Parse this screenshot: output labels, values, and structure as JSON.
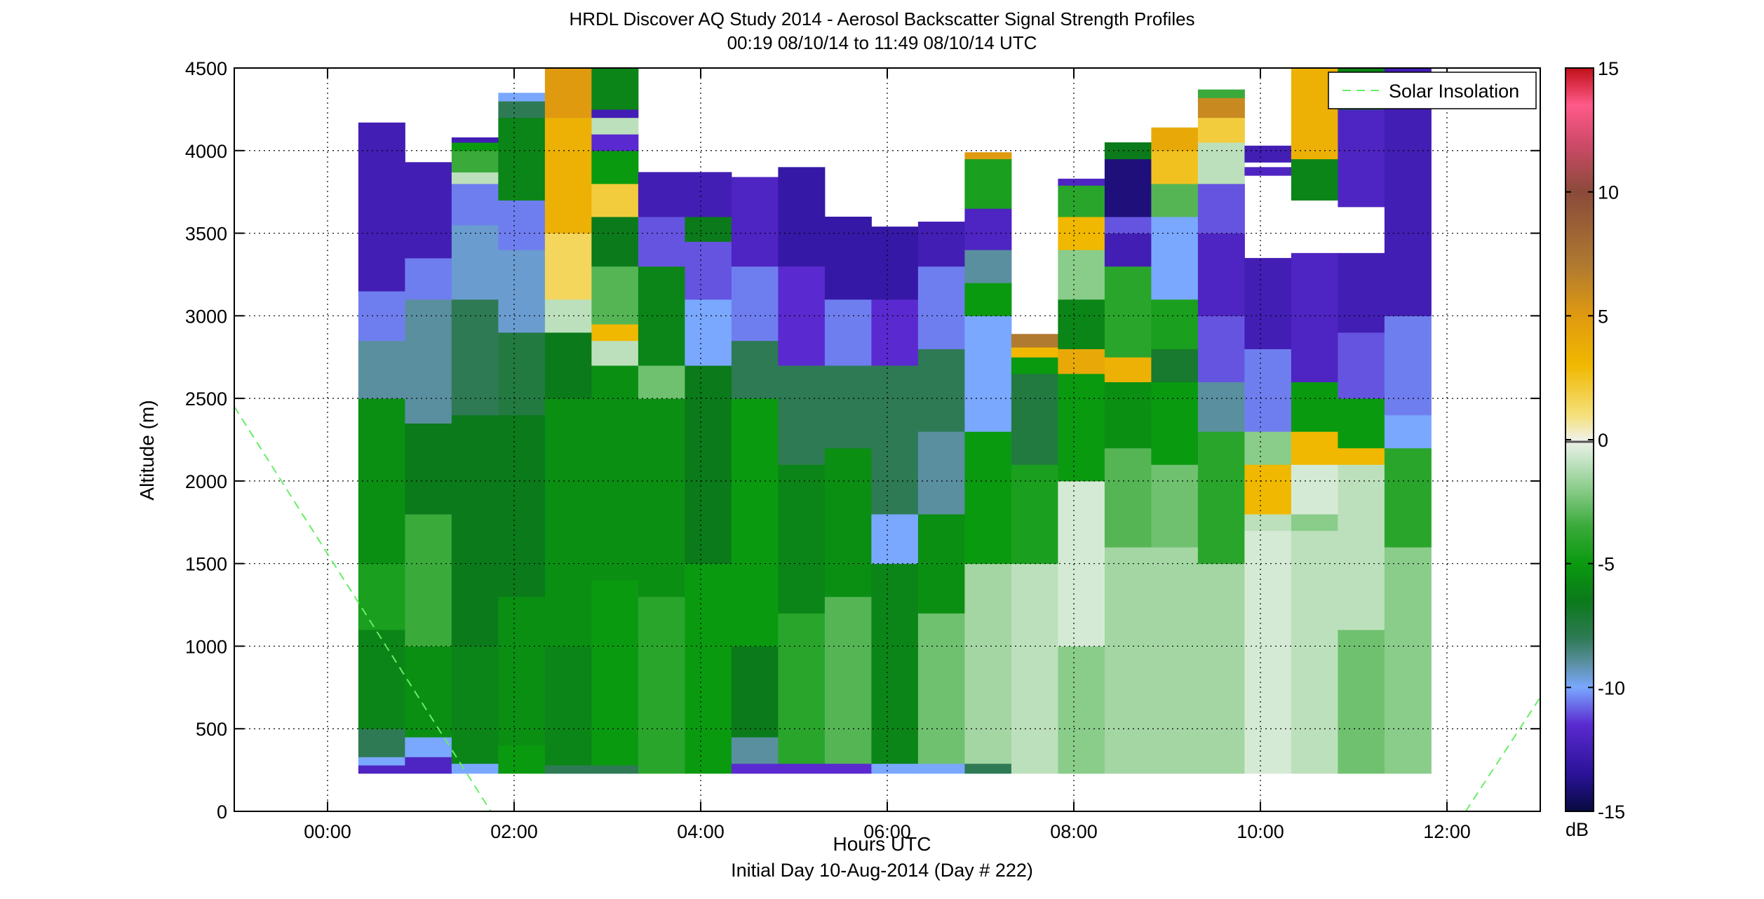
{
  "chart_data": {
    "type": "heatmap",
    "title": "HRDL Discover AQ Study 2014 - Aerosol Backscatter Signal Strength Profiles",
    "subtitle": "00:19 08/10/14 to 11:49 08/10/14  UTC",
    "xlabel": "Hours UTC",
    "ylabel": "Altitude (m)",
    "footnote": "Initial Day 10-Aug-2014 (Day # 222)",
    "xlim_hours": [
      -1.0,
      13.0
    ],
    "ylim": [
      0,
      4500
    ],
    "x_ticks": [
      {
        "value": 0,
        "label": "00:00"
      },
      {
        "value": 2,
        "label": "02:00"
      },
      {
        "value": 4,
        "label": "04:00"
      },
      {
        "value": 6,
        "label": "06:00"
      },
      {
        "value": 8,
        "label": "08:00"
      },
      {
        "value": 10,
        "label": "10:00"
      },
      {
        "value": 12,
        "label": "12:00"
      }
    ],
    "y_ticks": [
      0,
      500,
      1000,
      1500,
      2000,
      2500,
      3000,
      3500,
      4000,
      4500
    ],
    "grid": true,
    "legend": {
      "placement": "top-right",
      "entries": [
        "Solar Insolation"
      ]
    },
    "colorbar": {
      "unit": "dB",
      "range": [
        -15,
        15
      ],
      "ticks": [
        -15,
        -10,
        -5,
        0,
        5,
        10,
        15
      ],
      "stops": [
        {
          "v": -15,
          "c": "#080a40"
        },
        {
          "v": -13.5,
          "c": "#2a1298"
        },
        {
          "v": -11.5,
          "c": "#5a2ad0"
        },
        {
          "v": -10,
          "c": "#7aa8ff"
        },
        {
          "v": -9,
          "c": "#5a8fa0"
        },
        {
          "v": -8,
          "c": "#2e7a55"
        },
        {
          "v": -6.5,
          "c": "#0b7a1a"
        },
        {
          "v": -5,
          "c": "#0a9a10"
        },
        {
          "v": -3.5,
          "c": "#3aaa3a"
        },
        {
          "v": -2,
          "c": "#8acc8a"
        },
        {
          "v": -0.5,
          "c": "#d5ead5"
        },
        {
          "v": 0,
          "c": "#f0f0e6"
        },
        {
          "v": 1,
          "c": "#f5e07a"
        },
        {
          "v": 3,
          "c": "#f0b800"
        },
        {
          "v": 5,
          "c": "#e09a10"
        },
        {
          "v": 7,
          "c": "#b07a30"
        },
        {
          "v": 10,
          "c": "#8a4a3a"
        },
        {
          "v": 12,
          "c": "#d04a6a"
        },
        {
          "v": 13.5,
          "c": "#ff5a8a"
        },
        {
          "v": 15,
          "c": "#c01018"
        }
      ]
    },
    "solar_insolation_line": {
      "name": "Solar Insolation",
      "color": "#66ee66",
      "segments": [
        [
          [
            -1.0,
            2450
          ],
          [
            1.75,
            0
          ]
        ],
        [
          [
            12.2,
            0
          ],
          [
            13.0,
            690
          ]
        ]
      ]
    },
    "profiles": [
      {
        "t0": 0.33,
        "t1": 0.83,
        "top": 4170,
        "layers": [
          [
            230,
            280,
            -12
          ],
          [
            280,
            330,
            -10
          ],
          [
            330,
            500,
            -8
          ],
          [
            500,
            1100,
            -6
          ],
          [
            1100,
            1500,
            -4.5
          ],
          [
            1500,
            2500,
            -5.5
          ],
          [
            2500,
            2850,
            -9
          ],
          [
            2850,
            3150,
            -10.5
          ],
          [
            3150,
            4170,
            -12.5
          ]
        ]
      },
      {
        "t0": 0.83,
        "t1": 1.33,
        "top": 3930,
        "layers": [
          [
            230,
            330,
            -12
          ],
          [
            330,
            450,
            -10
          ],
          [
            450,
            1000,
            -5.5
          ],
          [
            1000,
            1800,
            -3.5
          ],
          [
            1800,
            2350,
            -6.5
          ],
          [
            2350,
            3100,
            -9
          ],
          [
            3100,
            3350,
            -10.5
          ],
          [
            3350,
            3930,
            -12.5
          ]
        ]
      },
      {
        "t0": 1.33,
        "t1": 1.83,
        "top": 4080,
        "layers": [
          [
            230,
            290,
            -10
          ],
          [
            290,
            1000,
            -6
          ],
          [
            1000,
            2400,
            -6.5
          ],
          [
            2400,
            3100,
            -8
          ],
          [
            3100,
            3550,
            -9.5
          ],
          [
            3550,
            3800,
            -10.5
          ],
          [
            3800,
            3870,
            -1
          ],
          [
            3870,
            4000,
            -3.5
          ],
          [
            4000,
            4050,
            -5
          ],
          [
            4050,
            4080,
            -12.5
          ]
        ]
      },
      {
        "t0": 1.83,
        "t1": 2.33,
        "top": 4350,
        "layers": [
          [
            230,
            400,
            -5
          ],
          [
            400,
            1300,
            -5.5
          ],
          [
            1300,
            2400,
            -6.5
          ],
          [
            2400,
            2900,
            -7.5
          ],
          [
            2900,
            3400,
            -9.5
          ],
          [
            3400,
            3700,
            -10.5
          ],
          [
            3700,
            4200,
            -6
          ],
          [
            4200,
            4300,
            -8
          ],
          [
            4300,
            4350,
            -10
          ]
        ]
      },
      {
        "t0": 2.33,
        "t1": 2.83,
        "top": 4500,
        "layers": [
          [
            230,
            280,
            -8
          ],
          [
            280,
            1000,
            -6
          ],
          [
            1000,
            2500,
            -5.5
          ],
          [
            2500,
            2900,
            -6.5
          ],
          [
            2900,
            3100,
            -1
          ],
          [
            3100,
            3500,
            1.5
          ],
          [
            3500,
            4200,
            3.5
          ],
          [
            4200,
            4500,
            5
          ]
        ]
      },
      {
        "t0": 2.83,
        "t1": 3.33,
        "top": 4500,
        "layers": [
          [
            230,
            280,
            -8
          ],
          [
            280,
            1400,
            -5
          ],
          [
            1400,
            2700,
            -5.5
          ],
          [
            2700,
            2850,
            -1
          ],
          [
            2850,
            2950,
            3
          ],
          [
            2950,
            3300,
            -3
          ],
          [
            3300,
            3600,
            -6.5
          ],
          [
            3600,
            3800,
            2
          ],
          [
            3800,
            4000,
            -5
          ],
          [
            4000,
            4100,
            -11.5
          ],
          [
            4100,
            4200,
            -1
          ],
          [
            4200,
            4250,
            -12.5
          ],
          [
            4250,
            4500,
            -6
          ]
        ]
      },
      {
        "t0": 3.33,
        "t1": 3.83,
        "top": 3870,
        "layers": [
          [
            230,
            1300,
            -4
          ],
          [
            1300,
            2500,
            -5.5
          ],
          [
            2500,
            2700,
            -2.5
          ],
          [
            2700,
            3300,
            -6
          ],
          [
            3300,
            3600,
            -11
          ],
          [
            3600,
            3870,
            -12.5
          ]
        ]
      },
      {
        "t0": 3.83,
        "t1": 4.33,
        "top": 3870,
        "layers": [
          [
            230,
            1500,
            -5
          ],
          [
            1500,
            2700,
            -6.5
          ],
          [
            2700,
            3100,
            -10
          ],
          [
            3100,
            3450,
            -11
          ],
          [
            3450,
            3600,
            -6.5
          ],
          [
            3600,
            3870,
            -12.5
          ]
        ]
      },
      {
        "t0": 4.33,
        "t1": 4.83,
        "top": 3840,
        "layers": [
          [
            230,
            290,
            -11.5
          ],
          [
            290,
            450,
            -9
          ],
          [
            450,
            1000,
            -6.5
          ],
          [
            1000,
            2500,
            -5
          ],
          [
            2500,
            2850,
            -8
          ],
          [
            2850,
            3300,
            -10.5
          ],
          [
            3300,
            3840,
            -12
          ]
        ]
      },
      {
        "t0": 4.83,
        "t1": 5.33,
        "top": 3900,
        "layers": [
          [
            230,
            290,
            -11.5
          ],
          [
            290,
            1200,
            -4
          ],
          [
            1200,
            2100,
            -6
          ],
          [
            2100,
            2700,
            -8
          ],
          [
            2700,
            3300,
            -11.5
          ],
          [
            3300,
            3900,
            -13
          ]
        ]
      },
      {
        "t0": 5.33,
        "t1": 5.83,
        "top": 3600,
        "layers": [
          [
            230,
            290,
            -11.5
          ],
          [
            290,
            1300,
            -3
          ],
          [
            1300,
            2200,
            -5.5
          ],
          [
            2200,
            2700,
            -8
          ],
          [
            2700,
            3100,
            -10.5
          ],
          [
            3100,
            3600,
            -13
          ]
        ]
      },
      {
        "t0": 5.83,
        "t1": 6.33,
        "top": 3540,
        "layers": [
          [
            230,
            290,
            -10
          ],
          [
            290,
            1500,
            -6
          ],
          [
            1500,
            1800,
            -10
          ],
          [
            1800,
            2700,
            -8
          ],
          [
            2700,
            3100,
            -11.5
          ],
          [
            3100,
            3540,
            -13
          ]
        ]
      },
      {
        "t0": 6.33,
        "t1": 6.83,
        "top": 3570,
        "layers": [
          [
            230,
            290,
            -10
          ],
          [
            290,
            1200,
            -2.5
          ],
          [
            1200,
            1800,
            -5.5
          ],
          [
            1800,
            2300,
            -9
          ],
          [
            2300,
            2800,
            -8
          ],
          [
            2800,
            3300,
            -10.5
          ],
          [
            3300,
            3570,
            -12.5
          ]
        ]
      },
      {
        "t0": 6.83,
        "t1": 7.33,
        "top": 3990,
        "layers": [
          [
            230,
            290,
            -8
          ],
          [
            290,
            1500,
            -1.5
          ],
          [
            1500,
            2300,
            -5
          ],
          [
            2300,
            3000,
            -10
          ],
          [
            3000,
            3200,
            -5
          ],
          [
            3200,
            3400,
            -9
          ],
          [
            3400,
            3650,
            -12
          ],
          [
            3650,
            3950,
            -4.5
          ],
          [
            3950,
            3990,
            5
          ]
        ]
      },
      {
        "t0": 7.33,
        "t1": 7.83,
        "top": 2890,
        "layers": [
          [
            230,
            1500,
            -1
          ],
          [
            1500,
            2100,
            -4.5
          ],
          [
            2100,
            2650,
            -7.5
          ],
          [
            2650,
            2750,
            -5
          ],
          [
            2750,
            2810,
            3
          ],
          [
            2810,
            2890,
            7
          ]
        ]
      },
      {
        "t0": 7.83,
        "t1": 8.33,
        "top": 3830,
        "layers": [
          [
            230,
            1000,
            -2
          ],
          [
            1000,
            2000,
            -0.5
          ],
          [
            2000,
            2650,
            -5
          ],
          [
            2650,
            2800,
            4
          ],
          [
            2800,
            3100,
            -6
          ],
          [
            3100,
            3400,
            -2
          ],
          [
            3400,
            3600,
            3
          ],
          [
            3600,
            3790,
            -4
          ],
          [
            3790,
            3830,
            -12
          ]
        ]
      },
      {
        "t0": 8.33,
        "t1": 8.83,
        "top": 4050,
        "layers": [
          [
            230,
            1600,
            -1.5
          ],
          [
            1600,
            2200,
            -3
          ],
          [
            2200,
            2600,
            -5.5
          ],
          [
            2600,
            2750,
            3.5
          ],
          [
            2750,
            3300,
            -4
          ],
          [
            3300,
            3500,
            -12.5
          ],
          [
            3500,
            3600,
            -11
          ],
          [
            3600,
            3950,
            -14
          ],
          [
            3950,
            4050,
            -6.5
          ]
        ]
      },
      {
        "t0": 8.83,
        "t1": 9.33,
        "top": 4140,
        "layers": [
          [
            230,
            1600,
            -1.5
          ],
          [
            1600,
            2100,
            -2.5
          ],
          [
            2100,
            2600,
            -5
          ],
          [
            2600,
            2800,
            -7
          ],
          [
            2800,
            3100,
            -4.5
          ],
          [
            3100,
            3600,
            -10
          ],
          [
            3600,
            3800,
            -3
          ],
          [
            3800,
            4000,
            2.5
          ],
          [
            4000,
            4140,
            4
          ]
        ]
      },
      {
        "t0": 9.33,
        "t1": 9.83,
        "top": 4370,
        "layers": [
          [
            230,
            1500,
            -1.5
          ],
          [
            1500,
            2300,
            -4
          ],
          [
            2300,
            2600,
            -9
          ],
          [
            2600,
            3000,
            -11
          ],
          [
            3000,
            3500,
            -12
          ],
          [
            3500,
            3800,
            -11
          ],
          [
            3800,
            4050,
            -1
          ],
          [
            4050,
            4200,
            2
          ],
          [
            4200,
            4320,
            6
          ],
          [
            4320,
            4370,
            -3.5
          ]
        ]
      },
      {
        "t0": 9.83,
        "t1": 10.33,
        "top": 4030,
        "layers": [
          [
            230,
            1700,
            -0.5
          ],
          [
            1700,
            1800,
            -1
          ],
          [
            1800,
            2100,
            3
          ],
          [
            2100,
            2300,
            -2
          ],
          [
            2300,
            2800,
            -10.5
          ],
          [
            2800,
            3350,
            -12.5
          ],
          [
            3850,
            3900,
            -12
          ],
          [
            3930,
            4030,
            -12.5
          ]
        ]
      },
      {
        "t0": 10.33,
        "t1": 10.83,
        "top": 4500,
        "layers": [
          [
            230,
            1700,
            -1
          ],
          [
            1700,
            1800,
            -2
          ],
          [
            1800,
            2100,
            -0.5
          ],
          [
            2100,
            2300,
            3
          ],
          [
            2300,
            2600,
            -5
          ],
          [
            2600,
            3380,
            -12
          ],
          [
            3700,
            3950,
            -6
          ],
          [
            3950,
            4500,
            3.5
          ]
        ]
      },
      {
        "t0": 10.83,
        "t1": 11.33,
        "top": 4500,
        "layers": [
          [
            230,
            1100,
            -2.5
          ],
          [
            1100,
            2100,
            -1
          ],
          [
            2100,
            2200,
            3
          ],
          [
            2200,
            2500,
            -5
          ],
          [
            2500,
            2900,
            -11
          ],
          [
            2900,
            3380,
            -12.5
          ],
          [
            3660,
            4250,
            -12
          ],
          [
            4250,
            4500,
            -6
          ]
        ]
      },
      {
        "t0": 11.33,
        "t1": 11.83,
        "top": 4500,
        "layers": [
          [
            230,
            1600,
            -2
          ],
          [
            1600,
            2200,
            -4
          ],
          [
            2200,
            2400,
            -10
          ],
          [
            2400,
            3000,
            -10.5
          ],
          [
            3000,
            4500,
            -12.5
          ]
        ]
      }
    ]
  }
}
